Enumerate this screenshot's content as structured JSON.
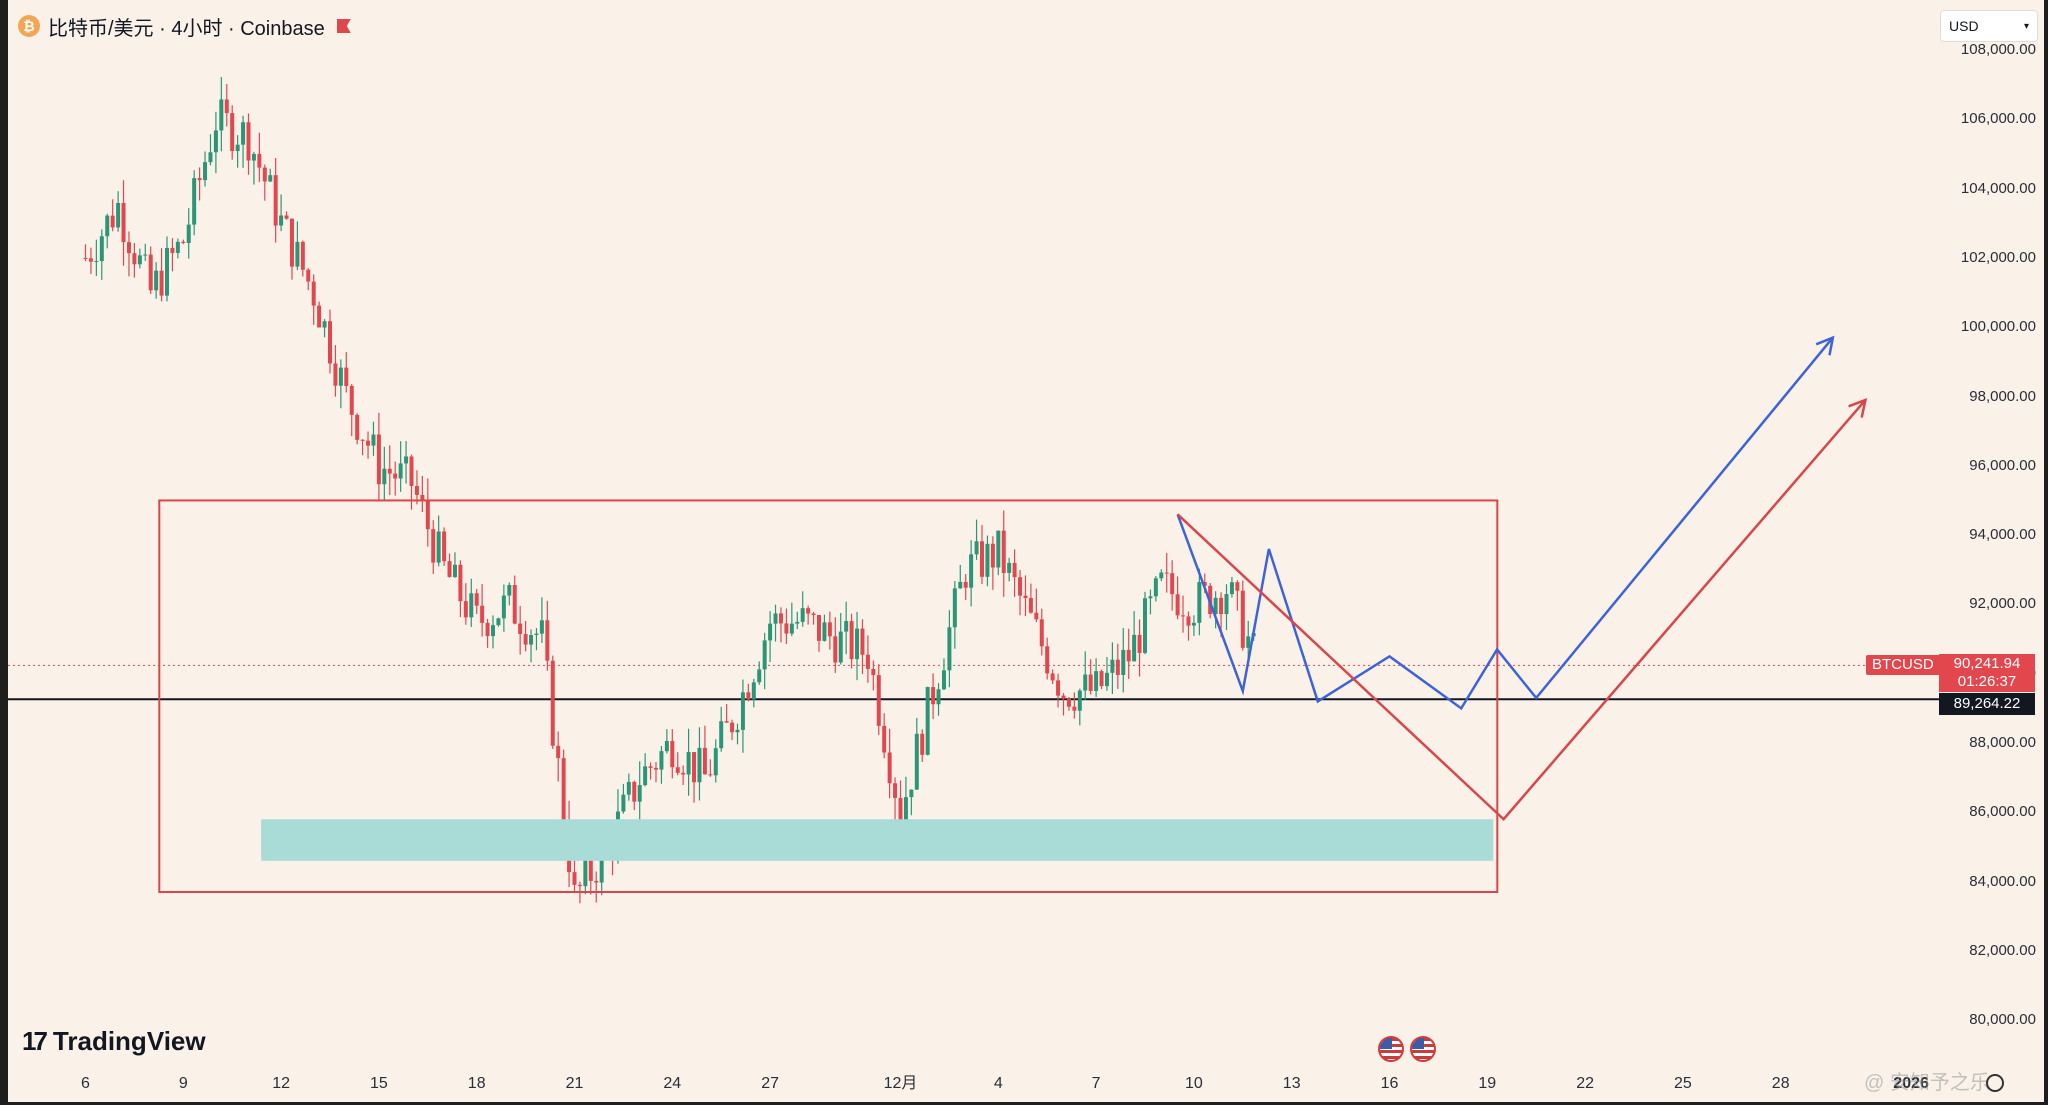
{
  "header": {
    "symbol_title": "比特币/美元 · 4小时 · Coinbase",
    "currency": "USD"
  },
  "colors": {
    "background": "#faf2e9",
    "up": "#2a9677",
    "down": "#e2474e",
    "projection_blue": "#3d63d8",
    "projection_red": "#d9464a",
    "zone_box": "#d9464a",
    "target_zone": "#a9dcd7"
  },
  "price_axis": {
    "labels": [
      "108,000.00",
      "106,000.00",
      "104,000.00",
      "102,000.00",
      "100,000.00",
      "98,000.00",
      "96,000.00",
      "94,000.00",
      "92,000.00",
      "90,000.00",
      "88,000.00",
      "86,000.00",
      "84,000.00",
      "82,000.00",
      "80,000.00"
    ]
  },
  "time_axis": {
    "labels": [
      "6",
      "9",
      "12",
      "15",
      "18",
      "21",
      "24",
      "27",
      "12月",
      "4",
      "7",
      "10",
      "13",
      "16",
      "19",
      "22",
      "25",
      "28",
      "2026"
    ]
  },
  "tags": {
    "symbol": "BTCUSD",
    "last_price": "90,241.94",
    "countdown": "01:26:37",
    "support_price": "89,264.22"
  },
  "logo": {
    "name": "TradingView"
  },
  "watermark": "@ 安知予之乐",
  "icons": [
    "bitcoin-icon",
    "flag-icon",
    "chevron-down-icon",
    "us-flag-icon",
    "settings-icon"
  ],
  "chart_data": {
    "type": "candlestick",
    "title": "比特币/美元 · 4小时 · Coinbase",
    "timeframe": "4小时",
    "ylim": [
      79600,
      108100
    ],
    "x_categories": [
      "6",
      "9",
      "12",
      "15",
      "18",
      "21",
      "24",
      "27",
      "12月",
      "4",
      "7",
      "10",
      "13",
      "16",
      "19",
      "22",
      "25",
      "28",
      "2026"
    ],
    "close_path": [
      [
        "6",
        102000
      ],
      [
        "7",
        103500
      ],
      [
        "8",
        101000
      ],
      [
        "9",
        102500
      ],
      [
        "10",
        106000
      ],
      [
        "11",
        105500
      ],
      [
        "12",
        103000
      ],
      [
        "13",
        101000
      ],
      [
        "14",
        98000
      ],
      [
        "15",
        96000
      ],
      [
        "16",
        95500
      ],
      [
        "17",
        93000
      ],
      [
        "18",
        91500
      ],
      [
        "19",
        92000
      ],
      [
        "20",
        91000
      ],
      [
        "21",
        83500
      ],
      [
        "22",
        85000
      ],
      [
        "23",
        87000
      ],
      [
        "24",
        88000
      ],
      [
        "25",
        87000
      ],
      [
        "26",
        89000
      ],
      [
        "27",
        91500
      ],
      [
        "28",
        91500
      ],
      [
        "29",
        91000
      ],
      [
        "30",
        90600
      ],
      [
        "12月",
        86000
      ],
      [
        "2",
        89500
      ],
      [
        "3",
        93000
      ],
      [
        "4",
        93500
      ],
      [
        "5",
        91500
      ],
      [
        "6",
        89500
      ],
      [
        "7",
        89500
      ],
      [
        "8",
        90500
      ],
      [
        "9",
        92500
      ],
      [
        "10",
        92000
      ],
      [
        "11",
        92500
      ],
      [
        "12",
        90200
      ]
    ],
    "horizontal_line": 89264.22,
    "last_price": 90241.94,
    "annotations": {
      "zone_box": {
        "from": "9",
        "to": "19",
        "top": 95000,
        "bottom": 83700
      },
      "target_zone": {
        "from": "12",
        "to": "19",
        "top": 85800,
        "bottom": 84600
      },
      "blue_projection": [
        [
          "9",
          94600
        ],
        [
          "10",
          89500
        ],
        [
          "11",
          93600
        ],
        [
          "13",
          89200
        ],
        [
          "15",
          90500
        ],
        [
          "17",
          89000
        ],
        [
          "18",
          90700
        ],
        [
          "19",
          89300
        ],
        [
          "28",
          99700
        ]
      ],
      "red_projection": [
        [
          "9",
          94600
        ],
        [
          "19",
          85800
        ],
        [
          "28",
          97900
        ]
      ]
    }
  }
}
